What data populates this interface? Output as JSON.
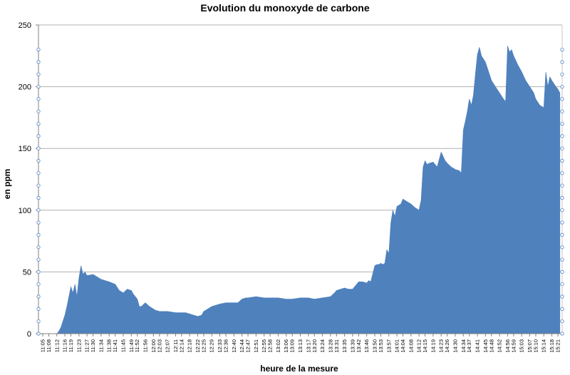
{
  "chart_data": {
    "type": "area",
    "title": "Evolution du monoxyde de carbone",
    "xlabel": "heure de la mesure",
    "ylabel": "en ppm",
    "ylim": [
      0,
      250
    ],
    "yticks": [
      0,
      50,
      100,
      150,
      200,
      250
    ],
    "grid": true,
    "legend": "none",
    "color": "#4f81bd",
    "x_tick_labels": [
      "11:05",
      "11:08",
      "11:12",
      "11:16",
      "11:19",
      "11:23",
      "11:27",
      "11:30",
      "11:34",
      "11:38",
      "11:41",
      "11:45",
      "11:49",
      "11:52",
      "11:56",
      "12:00",
      "12:03",
      "12:07",
      "12:11",
      "12:14",
      "12:18",
      "12:22",
      "12:25",
      "12:29",
      "12:33",
      "12:36",
      "12:40",
      "12:44",
      "12:47",
      "12:51",
      "12:55",
      "12:58",
      "13:02",
      "13:06",
      "13:09",
      "13:13",
      "13:17",
      "13:20",
      "13:24",
      "13:28",
      "13:31",
      "13:35",
      "13:39",
      "13:42",
      "13:46",
      "13:50",
      "13:53",
      "13:57",
      "14:01",
      "14:04",
      "14:08",
      "14:12",
      "14:15",
      "14:19",
      "14:23",
      "14:26",
      "14:30",
      "14:34",
      "14:37",
      "14:41",
      "14:45",
      "14:48",
      "14:52",
      "14:56",
      "14:59",
      "15:03",
      "15:07",
      "15:10",
      "15:14",
      "15:18",
      "15:21"
    ],
    "series": [
      {
        "x": [
          "11:05",
          "11:08",
          "11:12",
          "11:13",
          "11:14",
          "11:15",
          "11:16",
          "11:17",
          "11:18",
          "11:19",
          "11:20",
          "11:21",
          "11:22",
          "11:23",
          "11:24",
          "11:25",
          "11:26",
          "11:27",
          "11:30",
          "11:34",
          "11:38",
          "11:41",
          "11:43",
          "11:45",
          "11:47",
          "11:49",
          "11:50",
          "11:52",
          "11:53",
          "11:54",
          "11:56",
          "11:58",
          "12:00",
          "12:01",
          "12:03",
          "12:07",
          "12:11",
          "12:14",
          "12:16",
          "12:18",
          "12:20",
          "12:22",
          "12:24",
          "12:25",
          "12:27",
          "12:29",
          "12:33",
          "12:36",
          "12:40",
          "12:42",
          "12:44",
          "12:46",
          "12:47",
          "12:51",
          "12:55",
          "12:58",
          "13:02",
          "13:06",
          "13:09",
          "13:13",
          "13:17",
          "13:20",
          "13:24",
          "13:28",
          "13:30",
          "13:31",
          "13:35",
          "13:37",
          "13:39",
          "13:42",
          "13:44",
          "13:46",
          "13:47",
          "13:48",
          "13:50",
          "13:51",
          "13:52",
          "13:53",
          "13:54",
          "13:55",
          "13:56",
          "13:57",
          "13:58",
          "13:59",
          "14:00",
          "14:01",
          "14:03",
          "14:04",
          "14:06",
          "14:08",
          "14:10",
          "14:12",
          "14:13",
          "14:14",
          "14:15",
          "14:16",
          "14:17",
          "14:19",
          "14:21",
          "14:23",
          "14:25",
          "14:26",
          "14:28",
          "14:30",
          "14:32",
          "14:33",
          "14:34",
          "14:35",
          "14:36",
          "14:37",
          "14:38",
          "14:39",
          "14:40",
          "14:41",
          "14:42",
          "14:43",
          "14:45",
          "14:47",
          "14:48",
          "14:50",
          "14:52",
          "14:54",
          "14:55",
          "14:56",
          "14:57",
          "14:58",
          "14:59",
          "15:01",
          "15:03",
          "15:05",
          "15:07",
          "15:09",
          "15:10",
          "15:12",
          "15:14",
          "15:15",
          "15:16",
          "15:17",
          "15:18",
          "15:20",
          "15:21",
          "15:22"
        ],
        "values": [
          0,
          0,
          0,
          2,
          5,
          10,
          15,
          22,
          30,
          38,
          33,
          40,
          30,
          45,
          55,
          48,
          50,
          47,
          48,
          44,
          42,
          40,
          35,
          33,
          36,
          35,
          32,
          28,
          22,
          22,
          25,
          22,
          20,
          19,
          18,
          18,
          17,
          17,
          17,
          16,
          15,
          14,
          15,
          18,
          20,
          22,
          24,
          25,
          25,
          25,
          28,
          29,
          29,
          30,
          29,
          29,
          29,
          28,
          28,
          29,
          29,
          28,
          29,
          30,
          33,
          35,
          37,
          36,
          36,
          42,
          42,
          41,
          43,
          42,
          55,
          56,
          56,
          57,
          56,
          57,
          68,
          65,
          90,
          100,
          95,
          103,
          105,
          109,
          107,
          105,
          102,
          100,
          108,
          135,
          140,
          137,
          138,
          139,
          135,
          147,
          140,
          138,
          135,
          133,
          132,
          130,
          165,
          172,
          180,
          190,
          185,
          193,
          210,
          226,
          232,
          225,
          220,
          210,
          205,
          200,
          195,
          190,
          188,
          233,
          228,
          230,
          225,
          218,
          212,
          205,
          200,
          195,
          190,
          185,
          183,
          212,
          200,
          208,
          205,
          200,
          198,
          195
        ]
      }
    ]
  }
}
